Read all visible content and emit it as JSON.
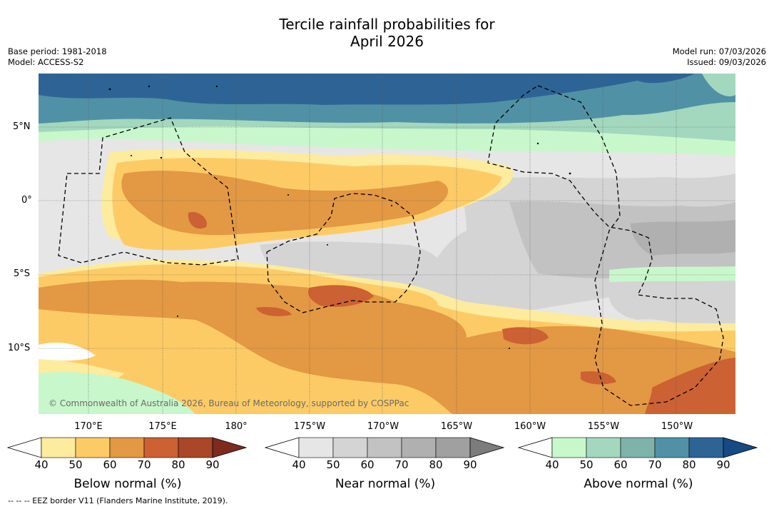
{
  "title": {
    "line1": "Tercile rainfall probabilities for",
    "line2": "April 2026"
  },
  "meta": {
    "base_period": "Base period: 1981-2018",
    "model": "Model: ACCESS-S2",
    "model_run": "Model run: 07/03/2026",
    "issued": "Issued: 09/03/2026"
  },
  "map": {
    "lat_labels": [
      "5°N",
      "0°",
      "5°S",
      "10°S"
    ],
    "lon_labels": [
      "170°E",
      "175°E",
      "180°",
      "175°W",
      "170°W",
      "165°W",
      "160°W",
      "155°W",
      "150°W"
    ],
    "copyright": "© Commonwealth of Australia 2026, Bureau of Meteorology, supported by COSPPac"
  },
  "colorbars": [
    {
      "title": "Below normal (%)",
      "ticks": [
        "40",
        "50",
        "60",
        "70",
        "80",
        "90"
      ],
      "colors": [
        "#ffffff",
        "#fdeb9e",
        "#fdcb66",
        "#e39843",
        "#cc6133",
        "#a94728",
        "#7f2a1f"
      ]
    },
    {
      "title": "Near normal (%)",
      "ticks": [
        "40",
        "50",
        "60",
        "70",
        "80",
        "90"
      ],
      "colors": [
        "#ffffff",
        "#e6e6e6",
        "#d4d4d4",
        "#c2c2c2",
        "#b0b0b0",
        "#a0a0a0",
        "#7c7c7c"
      ]
    },
    {
      "title": "Above normal (%)",
      "ticks": [
        "40",
        "50",
        "60",
        "70",
        "80",
        "90"
      ],
      "colors": [
        "#ffffff",
        "#c8f7cc",
        "#a3d8be",
        "#7db3aa",
        "#5191a5",
        "#2e6495",
        "#154a84"
      ]
    }
  ],
  "footnote": "--  --  -- EEZ border V11 (Flanders Marine Institute, 2019)."
}
